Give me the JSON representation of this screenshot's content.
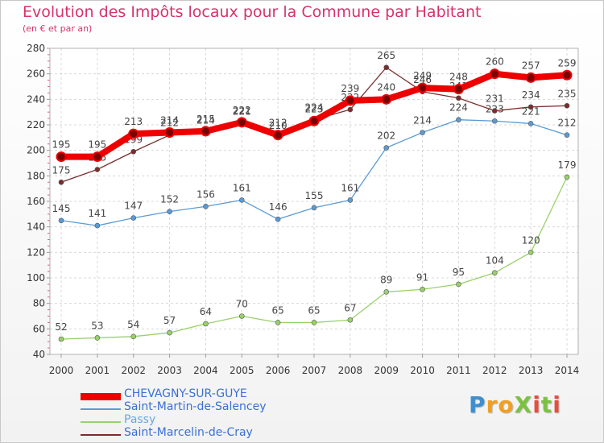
{
  "title": "Evolution des Impôts locaux pour la Commune par Habitant",
  "subtitle": "(en € et par an)",
  "logo": {
    "text": "ProXiti",
    "letters": [
      {
        "ch": "P",
        "color": "#3c8fd0"
      },
      {
        "ch": "r",
        "color": "#f0a020"
      },
      {
        "ch": "o",
        "color": "#f0a020"
      },
      {
        "ch": "X",
        "color": "#7cc242"
      },
      {
        "ch": "i",
        "color": "#e84c3d"
      },
      {
        "ch": "t",
        "color": "#7cc242"
      },
      {
        "ch": "i",
        "color": "#e84c3d"
      }
    ]
  },
  "chart_data": {
    "type": "line",
    "title": "Evolution des Impôts locaux pour la Commune par Habitant",
    "ylabel": "(en € et par an)",
    "xlabel": "",
    "ylim": [
      40,
      280
    ],
    "yticks": [
      40,
      60,
      80,
      100,
      120,
      140,
      160,
      180,
      200,
      220,
      240,
      260,
      280
    ],
    "grid": true,
    "legend_position": "bottom-left",
    "x": [
      "2000",
      "2001",
      "2002",
      "2003",
      "2004",
      "2005",
      "2006",
      "2007",
      "2008",
      "2009",
      "2010",
      "2011",
      "2012",
      "2013",
      "2014"
    ],
    "series": [
      {
        "name": "CHEVAGNY-SUR-GUYE",
        "color": "#ee0000",
        "values": [
          195,
          195,
          213,
          214,
          215,
          222,
          212,
          223,
          239,
          240,
          249,
          248,
          260,
          257,
          259
        ]
      },
      {
        "name": "Saint-Martin-de-Salencey",
        "color": "#5b9bd5",
        "values": [
          145,
          141,
          147,
          152,
          156,
          161,
          146,
          155,
          161,
          202,
          214,
          224,
          223,
          221,
          212
        ]
      },
      {
        "name": "Passy",
        "color": "#99d169",
        "values": [
          52,
          53,
          54,
          57,
          64,
          70,
          65,
          65,
          67,
          89,
          91,
          95,
          104,
          120,
          179
        ]
      },
      {
        "name": "Saint-Marcelin-de-Cray",
        "color": "#7b2c2c",
        "values": [
          175,
          185,
          199,
          212,
          214,
          221,
          210,
          224,
          232,
          265,
          246,
          241,
          231,
          234,
          235
        ]
      }
    ]
  }
}
